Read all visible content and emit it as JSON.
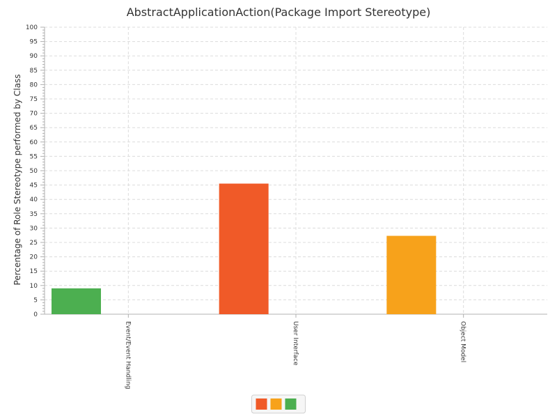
{
  "chart_data": {
    "type": "bar",
    "title": "AbstractApplicationAction(Package Import Stereotype)",
    "xlabel": "",
    "ylabel": "Percentage of Role Stereotype performed by Class",
    "ylim": [
      0,
      100
    ],
    "ytick_step": 5,
    "yticks": [
      "0",
      "5",
      "10",
      "15",
      "20",
      "25",
      "30",
      "35",
      "40",
      "45",
      "50",
      "55",
      "60",
      "65",
      "70",
      "75",
      "80",
      "85",
      "90",
      "95",
      "100"
    ],
    "grid": true,
    "categories": [
      "Event/Event Handling",
      "User Interface",
      "Object Model"
    ],
    "bars": [
      {
        "category": "Event/Event Handling",
        "value": 9,
        "color": "#4caf50"
      },
      {
        "category": "User Interface",
        "value": 45.5,
        "color": "#f05a28"
      },
      {
        "category": "Object Model",
        "value": 27.3,
        "color": "#f7a21b"
      }
    ],
    "legend": {
      "placement": "bottom-center",
      "swatches": [
        "#f05a28",
        "#f7a21b",
        "#4caf50"
      ]
    }
  }
}
